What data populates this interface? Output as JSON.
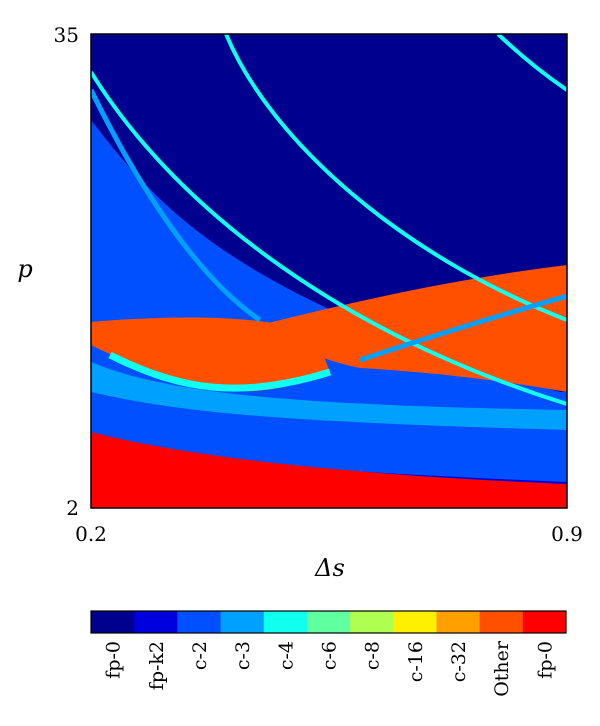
{
  "chart_data": {
    "type": "heatmap",
    "title": "",
    "xlabel": "Δs",
    "ylabel": "p",
    "xlim": [
      0.2,
      0.9
    ],
    "ylim": [
      2,
      35
    ],
    "x_ticks": [
      "0.2",
      "0.9"
    ],
    "y_ticks": [
      "2",
      "35"
    ],
    "colorbar": {
      "categories": [
        {
          "label": "fp-0",
          "color": "#00008f"
        },
        {
          "label": "fp-k2",
          "color": "#0000df"
        },
        {
          "label": "c-2",
          "color": "#0050ff"
        },
        {
          "label": "c-3",
          "color": "#00a0ff"
        },
        {
          "label": "c-4",
          "color": "#10ffef"
        },
        {
          "label": "c-6",
          "color": "#60ff9f"
        },
        {
          "label": "c-8",
          "color": "#afff50"
        },
        {
          "label": "c-16",
          "color": "#ffef00"
        },
        {
          "label": "c-32",
          "color": "#ffa000"
        },
        {
          "label": "Other",
          "color": "#ff5000"
        },
        {
          "label": "fp-0",
          "color": "#ff0000"
        }
      ]
    },
    "colors": {
      "background": "#00008f",
      "fp_k2_band": "#0000df",
      "c2_band": "#0050ff",
      "c3_band": "#00a0ff",
      "c4_edge": "#10ffef",
      "other_region": "#ff5000",
      "bottom_fp0": "#ff0000"
    }
  }
}
